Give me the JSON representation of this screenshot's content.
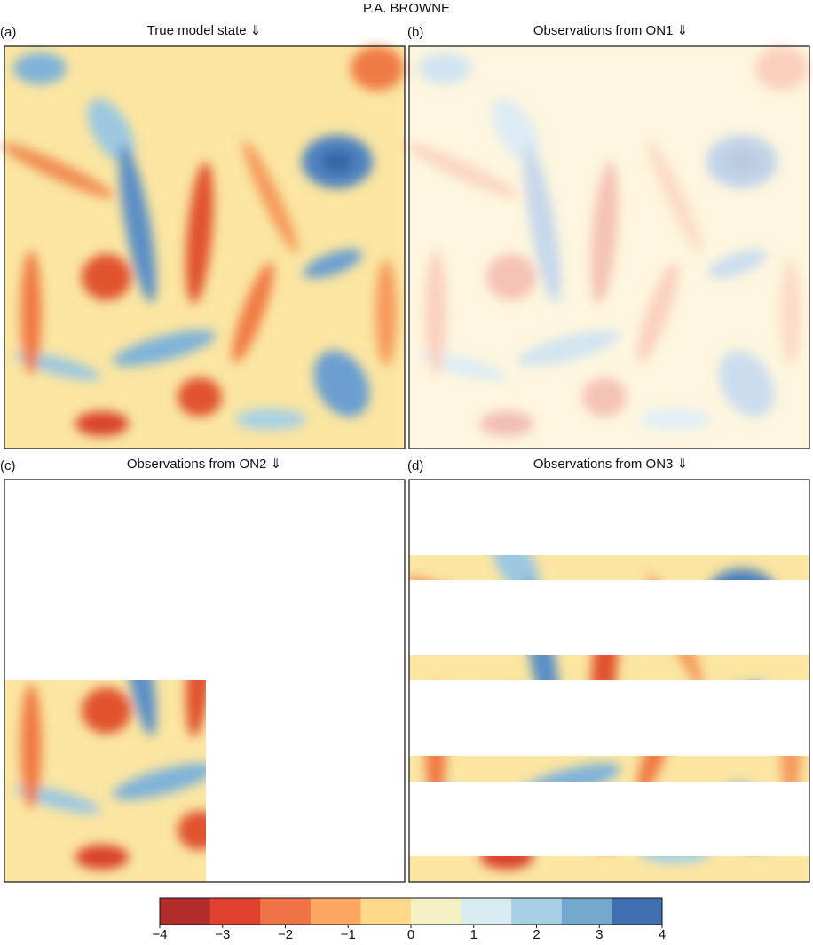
{
  "header": {
    "author": "P.A. BROWNE"
  },
  "panels": [
    {
      "label": "(a)",
      "title": "True model state ⇓"
    },
    {
      "label": "(b)",
      "title": "Observations from ON1 ⇓"
    },
    {
      "label": "(c)",
      "title": "Observations from ON2 ⇓"
    },
    {
      "label": "(d)",
      "title": "Observations from ON3 ⇓"
    }
  ],
  "colorbar": {
    "lim": [
      -4,
      4
    ],
    "colors": [
      "#b22c2c",
      "#e0412e",
      "#f07348",
      "#fba75f",
      "#fed88b",
      "#f4f1c4",
      "#d9ecf1",
      "#a7d0e4",
      "#74a9cf",
      "#3d6fb1"
    ],
    "ticks": [
      {
        "value": -4,
        "label": "−4"
      },
      {
        "value": -3,
        "label": "−3"
      },
      {
        "value": -2,
        "label": "−2"
      },
      {
        "value": -1,
        "label": "−1"
      },
      0,
      1,
      2,
      3,
      4
    ]
  }
}
